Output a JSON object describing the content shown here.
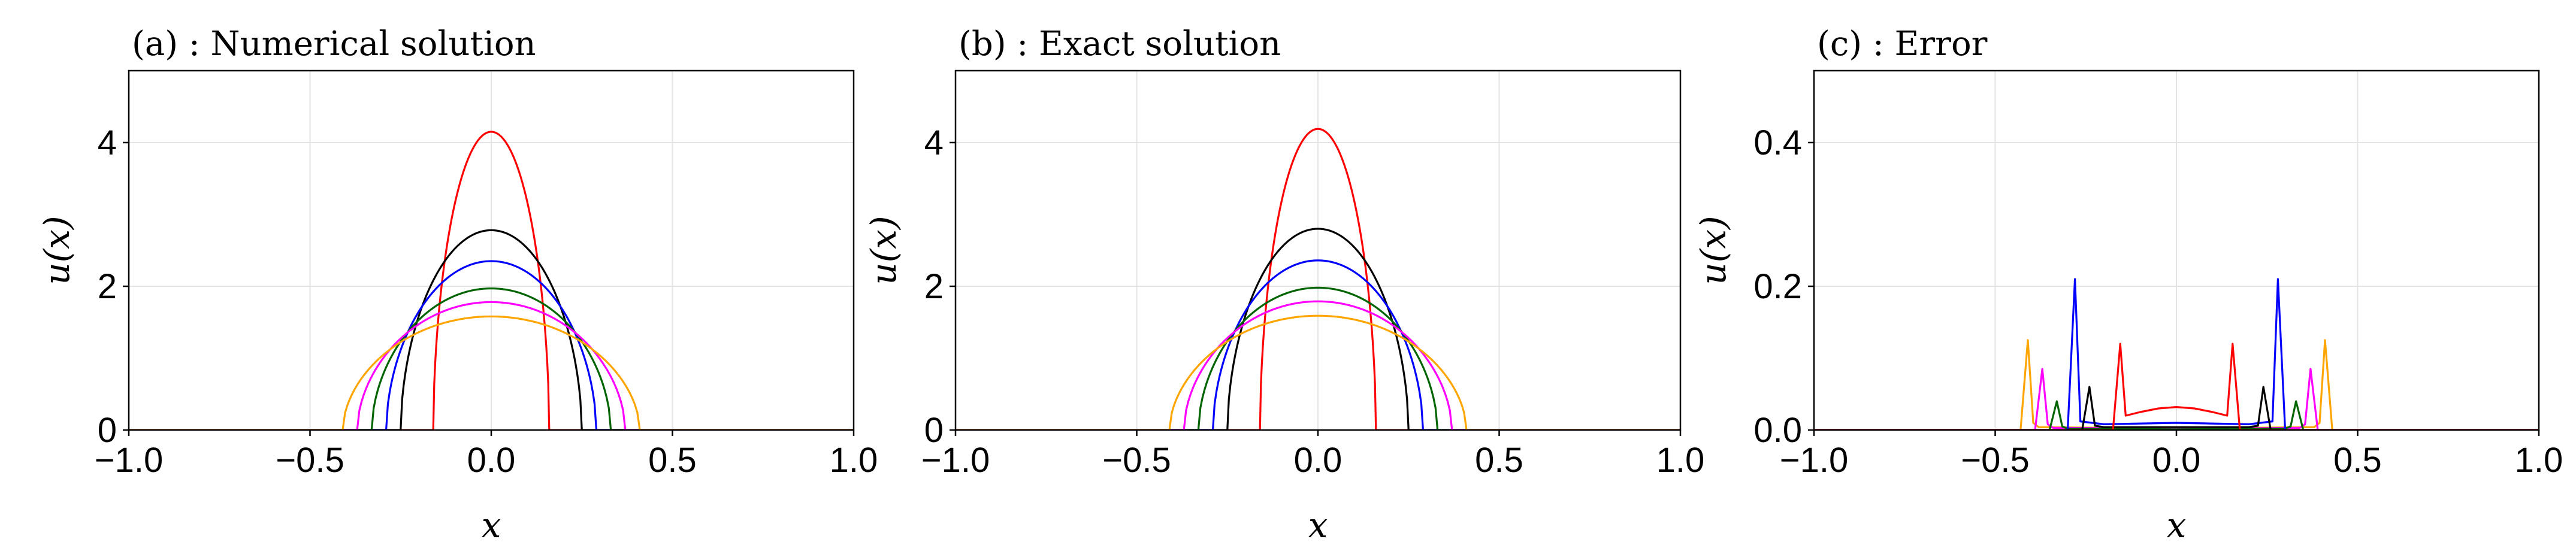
{
  "chart_data": [
    {
      "type": "line",
      "title": "(a) :  Numerical solution",
      "xlabel": "x",
      "ylabel": "u(x)",
      "xlim": [
        -1.0,
        1.0
      ],
      "ylim": [
        0,
        5
      ],
      "xticks": [
        -1.0,
        -0.5,
        0.0,
        0.5,
        1.0
      ],
      "xtick_labels": [
        "−1.0",
        "−0.5",
        "0.0",
        "0.5",
        "1.0"
      ],
      "yticks": [
        0,
        2,
        4
      ],
      "ytick_labels": [
        "0",
        "2",
        "4"
      ],
      "grid": true,
      "series": [
        {
          "color": "#ff0000",
          "profile": "flat",
          "peak": 4.15,
          "half_width": 0.16,
          "points": []
        },
        {
          "color": "#000000",
          "profile": "flat",
          "peak": 2.78,
          "half_width": 0.25,
          "points": []
        },
        {
          "color": "#0000ff",
          "profile": "flat",
          "peak": 2.35,
          "half_width": 0.29,
          "points": []
        },
        {
          "color": "#006400",
          "profile": "flat",
          "peak": 1.97,
          "half_width": 0.33,
          "points": []
        },
        {
          "color": "#ff00ff",
          "profile": "flat",
          "peak": 1.78,
          "half_width": 0.37,
          "points": []
        },
        {
          "color": "#ffa500",
          "profile": "flat",
          "peak": 1.58,
          "half_width": 0.41,
          "points": []
        }
      ]
    },
    {
      "type": "line",
      "title": "(b) :  Exact solution",
      "xlabel": "x",
      "ylabel": "u(x)",
      "xlim": [
        -1.0,
        1.0
      ],
      "ylim": [
        0,
        5
      ],
      "xticks": [
        -1.0,
        -0.5,
        0.0,
        0.5,
        1.0
      ],
      "xtick_labels": [
        "−1.0",
        "−0.5",
        "0.0",
        "0.5",
        "1.0"
      ],
      "yticks": [
        0,
        2,
        4
      ],
      "ytick_labels": [
        "0",
        "2",
        "4"
      ],
      "grid": true,
      "series": [
        {
          "color": "#ff0000",
          "profile": "flat",
          "peak": 4.19,
          "half_width": 0.16,
          "points": []
        },
        {
          "color": "#000000",
          "profile": "flat",
          "peak": 2.8,
          "half_width": 0.25,
          "points": []
        },
        {
          "color": "#0000ff",
          "profile": "flat",
          "peak": 2.36,
          "half_width": 0.29,
          "points": []
        },
        {
          "color": "#006400",
          "profile": "flat",
          "peak": 1.98,
          "half_width": 0.33,
          "points": []
        },
        {
          "color": "#ff00ff",
          "profile": "flat",
          "peak": 1.79,
          "half_width": 0.37,
          "points": []
        },
        {
          "color": "#ffa500",
          "profile": "flat",
          "peak": 1.59,
          "half_width": 0.41,
          "points": []
        }
      ]
    },
    {
      "type": "line",
      "title": "(c) :  Error",
      "xlabel": "x",
      "ylabel": "u(x)",
      "xlim": [
        -1.0,
        1.0
      ],
      "ylim": [
        0,
        0.5
      ],
      "xticks": [
        -1.0,
        -0.5,
        0.0,
        0.5,
        1.0
      ],
      "xtick_labels": [
        "−1.0",
        "−0.5",
        "0.0",
        "0.5",
        "1.0"
      ],
      "yticks": [
        0,
        0.2,
        0.4
      ],
      "ytick_labels": [
        "0.0",
        "0.2",
        "0.4"
      ],
      "grid": true,
      "series": [
        {
          "color": "#ffa500",
          "profile": "points",
          "points": [
            [
              -1.0,
              0
            ],
            [
              -0.43,
              0
            ],
            [
              -0.41,
              0.125
            ],
            [
              -0.395,
              0.01
            ],
            [
              -0.38,
              0.004
            ],
            [
              0.0,
              0.002
            ],
            [
              0.38,
              0.004
            ],
            [
              0.395,
              0.01
            ],
            [
              0.41,
              0.125
            ],
            [
              0.43,
              0
            ],
            [
              1.0,
              0
            ]
          ]
        },
        {
          "color": "#ff00ff",
          "profile": "points",
          "points": [
            [
              -1.0,
              0
            ],
            [
              -0.39,
              0
            ],
            [
              -0.37,
              0.085
            ],
            [
              -0.355,
              0.008
            ],
            [
              -0.34,
              0.003
            ],
            [
              0.0,
              0.002
            ],
            [
              0.34,
              0.003
            ],
            [
              0.355,
              0.008
            ],
            [
              0.37,
              0.085
            ],
            [
              0.39,
              0
            ],
            [
              1.0,
              0
            ]
          ]
        },
        {
          "color": "#006400",
          "profile": "points",
          "points": [
            [
              -1.0,
              0
            ],
            [
              -0.35,
              0
            ],
            [
              -0.33,
              0.04
            ],
            [
              -0.315,
              0.005
            ],
            [
              -0.3,
              0.002
            ],
            [
              0.0,
              0.001
            ],
            [
              0.3,
              0.002
            ],
            [
              0.315,
              0.005
            ],
            [
              0.33,
              0.04
            ],
            [
              0.35,
              0
            ],
            [
              1.0,
              0
            ]
          ]
        },
        {
          "color": "#0000ff",
          "profile": "points",
          "points": [
            [
              -1.0,
              0
            ],
            [
              -0.3,
              0
            ],
            [
              -0.28,
              0.21
            ],
            [
              -0.265,
              0.012
            ],
            [
              -0.2,
              0.008
            ],
            [
              0.0,
              0.01
            ],
            [
              0.2,
              0.008
            ],
            [
              0.265,
              0.012
            ],
            [
              0.28,
              0.21
            ],
            [
              0.3,
              0
            ],
            [
              1.0,
              0
            ]
          ]
        },
        {
          "color": "#000000",
          "profile": "points",
          "points": [
            [
              -1.0,
              0
            ],
            [
              -0.26,
              0
            ],
            [
              -0.24,
              0.06
            ],
            [
              -0.225,
              0.006
            ],
            [
              -0.2,
              0.004
            ],
            [
              0.0,
              0.004
            ],
            [
              0.2,
              0.004
            ],
            [
              0.225,
              0.006
            ],
            [
              0.24,
              0.06
            ],
            [
              0.26,
              0
            ],
            [
              1.0,
              0
            ]
          ]
        },
        {
          "color": "#ff0000",
          "profile": "points",
          "points": [
            [
              -1.0,
              0
            ],
            [
              -0.175,
              0
            ],
            [
              -0.155,
              0.12
            ],
            [
              -0.14,
              0.02
            ],
            [
              -0.1,
              0.025
            ],
            [
              -0.05,
              0.03
            ],
            [
              0.0,
              0.032
            ],
            [
              0.05,
              0.03
            ],
            [
              0.1,
              0.025
            ],
            [
              0.14,
              0.02
            ],
            [
              0.155,
              0.12
            ],
            [
              0.175,
              0
            ],
            [
              1.0,
              0
            ]
          ]
        }
      ]
    }
  ]
}
